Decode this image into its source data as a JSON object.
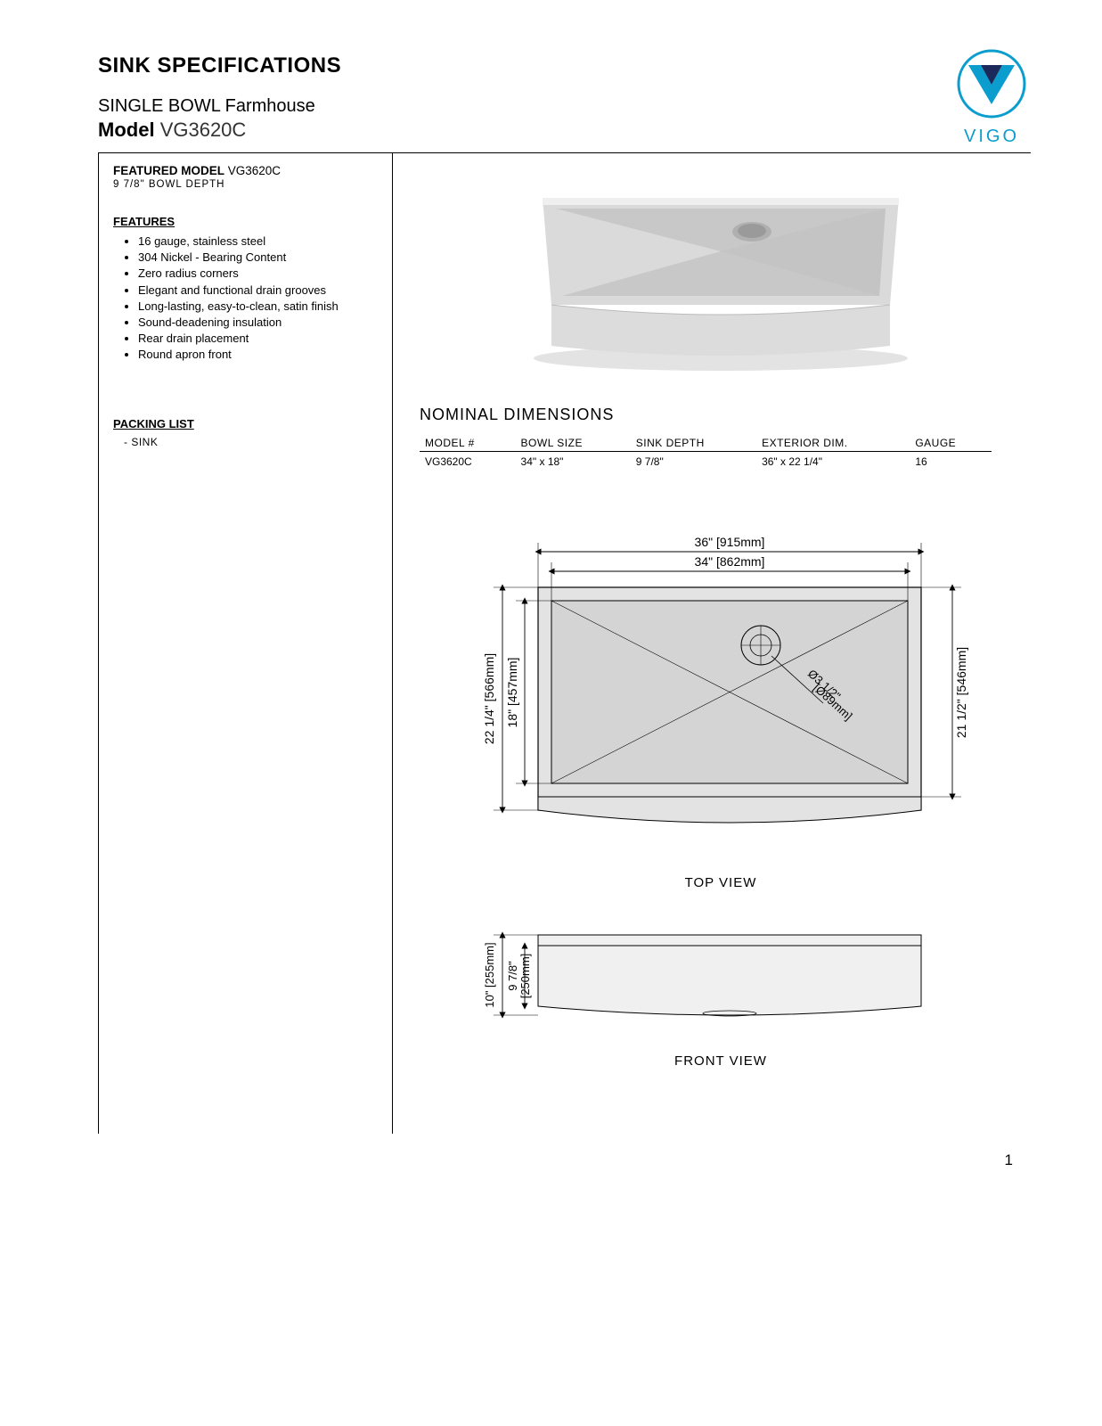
{
  "header": {
    "title": "SINK SPECIFICATIONS",
    "subtype": "SINGLE BOWL Farmhouse",
    "model_label": "Model",
    "model_value": "VG3620C"
  },
  "brand": {
    "name": "VIGO",
    "logo_outer_color": "#0b9dce",
    "logo_inner_color": "#1b2a5b"
  },
  "left_panel": {
    "featured_label": "FEATURED MODEL",
    "featured_value": "VG3620C",
    "depth_line": "9 7/8\" BOWL DEPTH",
    "features_heading": "FEATURES",
    "features": [
      "16 gauge, stainless steel",
      "304 Nickel - Bearing Content",
      "Zero radius corners",
      "Elegant and functional drain grooves",
      "Long-lasting, easy-to-clean, satin finish",
      "Sound-deadening insulation",
      "Rear drain placement",
      "Round apron front"
    ],
    "packing_heading": "PACKING LIST",
    "packing": [
      "SINK"
    ]
  },
  "product_photo": {
    "body_color": "#cfcfcf",
    "body_highlight": "#eaeaea",
    "front_color": "#d6d6d6",
    "drain_color": "#b8b8b8",
    "shadow_color": "#e3e3e3"
  },
  "nominal": {
    "heading": "NOMINAL DIMENSIONS",
    "columns": [
      "MODEL #",
      "BOWL SIZE",
      "SINK DEPTH",
      "EXTERIOR DIM.",
      "GAUGE"
    ],
    "row": [
      "VG3620C",
      "34\" x 18\"",
      "9 7/8\"",
      "36\" x 22 1/4\"",
      "16"
    ]
  },
  "top_view": {
    "label": "TOP VIEW",
    "dims": {
      "outer_w": "36\" [915mm]",
      "inner_w": "34\" [862mm]",
      "outer_h": "22 1/4\" [566mm]",
      "inner_h": "18\" [457mm]",
      "right_h": "21 1/2\" [546mm]",
      "drain_dia_a": "Ø3 1/2\"",
      "drain_dia_b": "[Ø89mm]"
    },
    "colors": {
      "fill": "#e3e3e3",
      "fill_inner": "#d4d4d4",
      "stroke": "#000000",
      "dim_line": "#000000"
    }
  },
  "front_view": {
    "label": "FRONT VIEW",
    "dims": {
      "outer_h": "10\" [255mm]",
      "inner_h_a": "9 7/8\"",
      "inner_h_b": "[250mm]"
    },
    "colors": {
      "fill": "#f0f0f0",
      "stroke": "#000000"
    }
  },
  "page_number": "1"
}
